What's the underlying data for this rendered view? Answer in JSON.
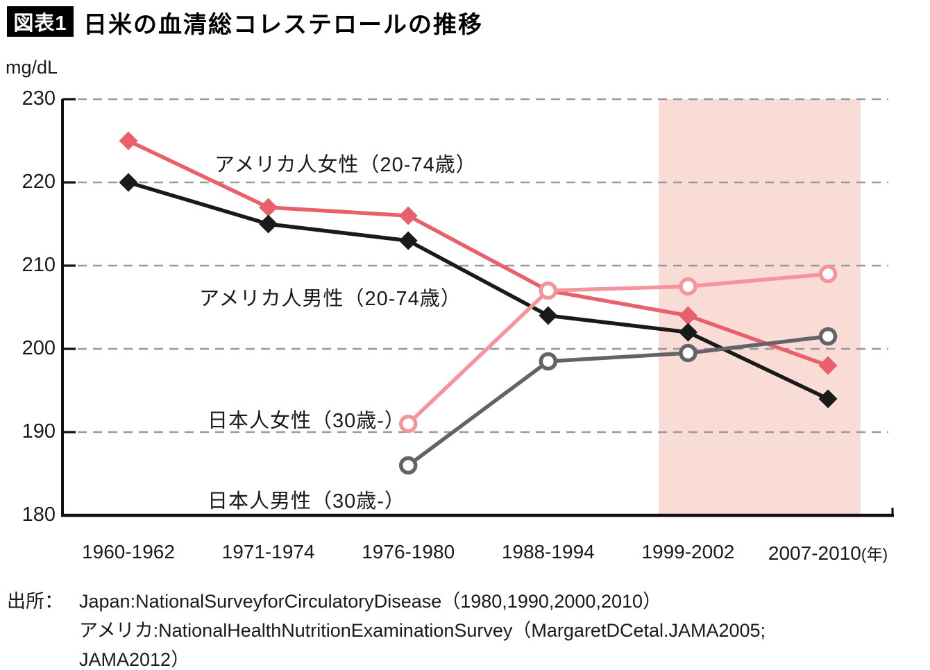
{
  "header": {
    "badge": "図表1",
    "title": "日米の血清総コレステロールの推移"
  },
  "chart": {
    "unit_label": "mg/dL",
    "x_axis_suffix": "(年)"
  },
  "chart_data": {
    "type": "line",
    "title": "日米の血清総コレステロールの推移",
    "xlabel": "年",
    "ylabel": "mg/dL",
    "ylim": [
      180,
      230
    ],
    "yticks": [
      180,
      190,
      200,
      210,
      220,
      230
    ],
    "grid": "dashed-horizontal",
    "grid_color": "#999999",
    "categories": [
      "1960-1962",
      "1971-1974",
      "1976-1980",
      "1988-1994",
      "1999-2002",
      "2007-2010"
    ],
    "series": [
      {
        "name": "アメリカ人女性（20-74歳）",
        "marker": "diamond",
        "color": "#e8606b",
        "values": [
          225,
          217,
          216,
          207,
          204,
          198
        ]
      },
      {
        "name": "アメリカ人男性（20-74歳）",
        "marker": "diamond",
        "color": "#1a1a1a",
        "values": [
          220,
          215,
          213,
          204,
          202,
          194
        ]
      },
      {
        "name": "日本人女性（30歳-）",
        "marker": "circle-open",
        "color": "#f4949c",
        "values": [
          null,
          null,
          191,
          207,
          207.5,
          209
        ]
      },
      {
        "name": "日本人男性（30歳-）",
        "marker": "circle-open",
        "color": "#636369",
        "values": [
          null,
          null,
          186,
          198.5,
          199.5,
          201.5
        ]
      }
    ],
    "highlight_band": {
      "from_category": "1999-2002",
      "to_category": "2007-2010",
      "color": "#fadcd6"
    },
    "legend_position": "inline-annotations"
  },
  "source": {
    "prefix": "出所：",
    "lines": [
      "Japan:NationalSurveyforCirculatoryDisease（1980,1990,2000,2010）",
      "アメリカ:NationalHealthNutritionExaminationSurvey（MargaretDCetal.JAMA2005;",
      "JAMA2012）"
    ]
  }
}
